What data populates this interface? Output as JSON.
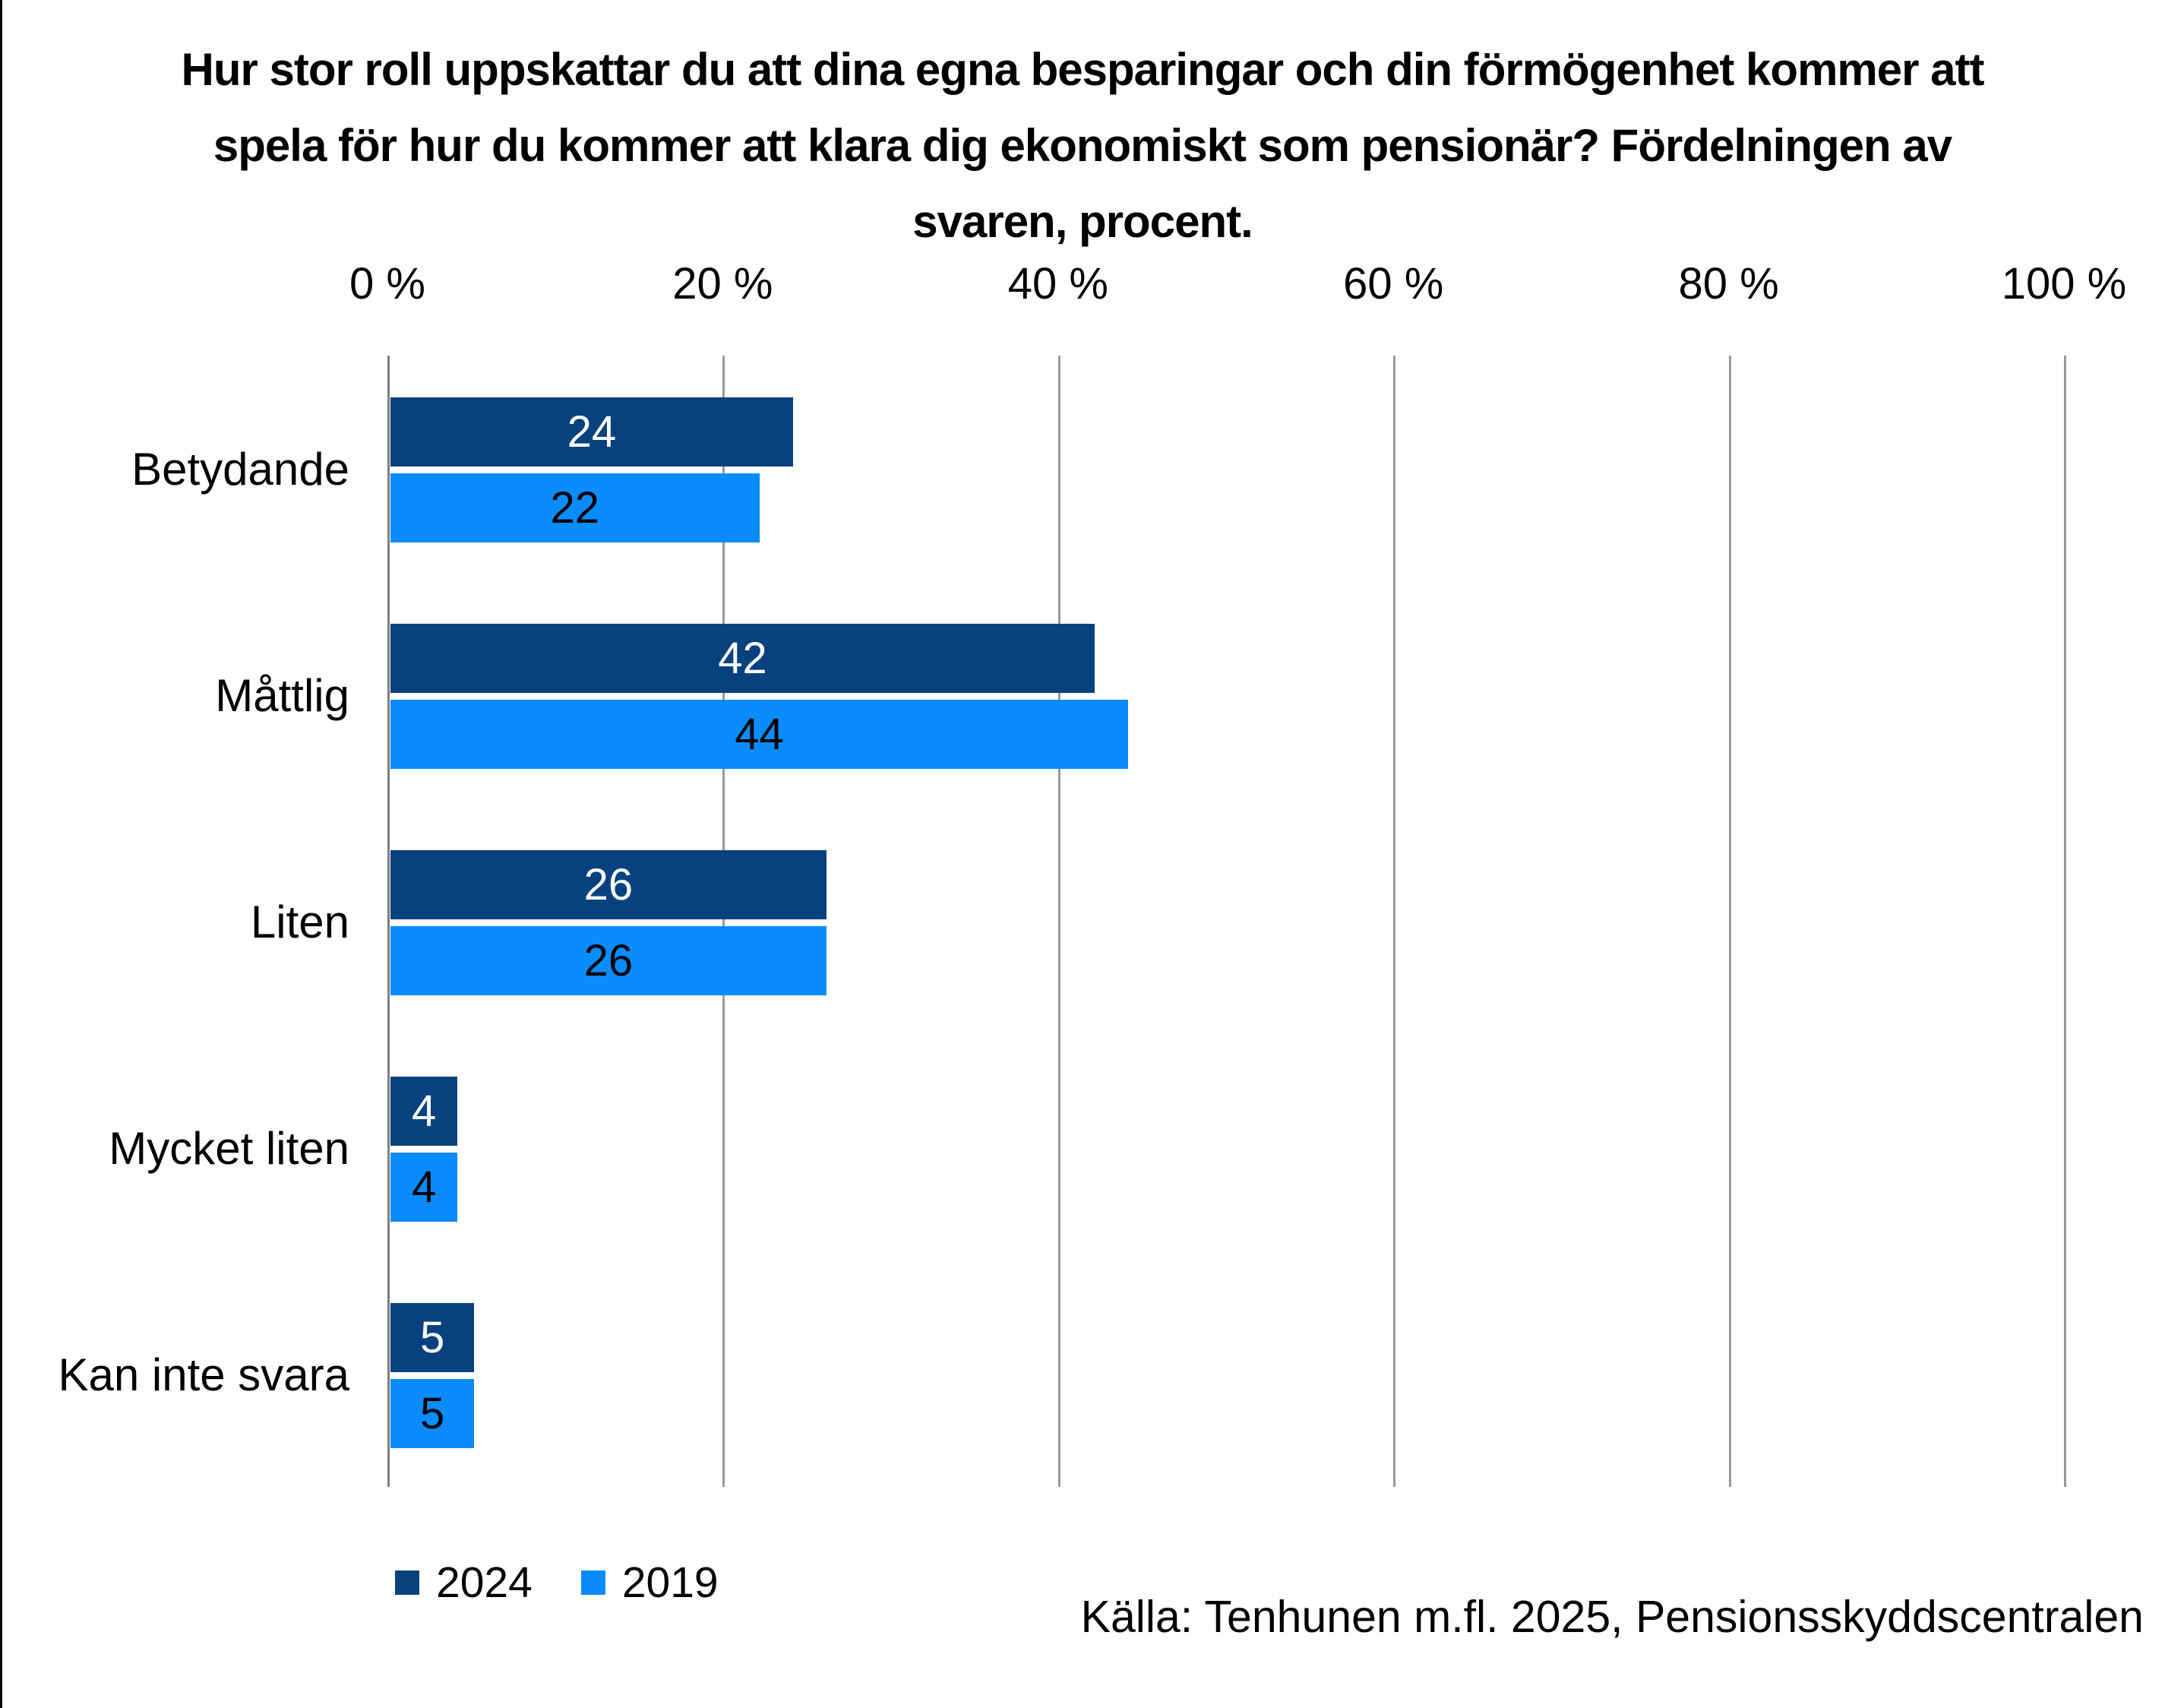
{
  "title_lines": [
    "Hur stor roll uppskattar du att dina egna besparingar och din förmögenhet kommer att",
    "spela för hur du kommer att klara dig ekonomiskt som pensionär? Fördelningen av",
    "svaren, procent."
  ],
  "chart_data": {
    "type": "bar",
    "orientation": "horizontal",
    "title": "Hur stor roll uppskattar du att dina egna besparingar och din förmögenhet kommer att spela för hur du kommer att klara dig ekonomiskt som pensionär? Fördelningen av svaren, procent.",
    "categories": [
      "Betydande",
      "Måttlig",
      "Liten",
      "Mycket liten",
      "Kan inte svara"
    ],
    "series": [
      {
        "name": "2024",
        "color": "#07427E",
        "label_color": "#FFFFFF",
        "values": [
          24,
          42,
          26,
          4,
          5
        ]
      },
      {
        "name": "2019",
        "color": "#0A8CFF",
        "label_color": "#000000",
        "values": [
          22,
          44,
          26,
          4,
          5
        ]
      }
    ],
    "x_axis": {
      "tick_labels": [
        "0 %",
        "20 %",
        "40 %",
        "60 %",
        "80 %",
        "100 %"
      ],
      "tick_values": [
        0,
        20,
        40,
        60,
        80,
        100
      ],
      "min": 0,
      "max": 100
    },
    "grid": true,
    "legend_position": "bottom-left",
    "source": "Källa: Tenhunen m.fl. 2025, Pensionsskyddscentralen"
  },
  "legend": {
    "items": [
      {
        "label": "2024",
        "color": "#07427E"
      },
      {
        "label": "2019",
        "color": "#0A8CFF"
      }
    ]
  },
  "colors": {
    "gridline": "#999999",
    "axis": "#7F7F7F",
    "background": "#FFFFFF",
    "border": "#000000",
    "text": "#000000"
  }
}
